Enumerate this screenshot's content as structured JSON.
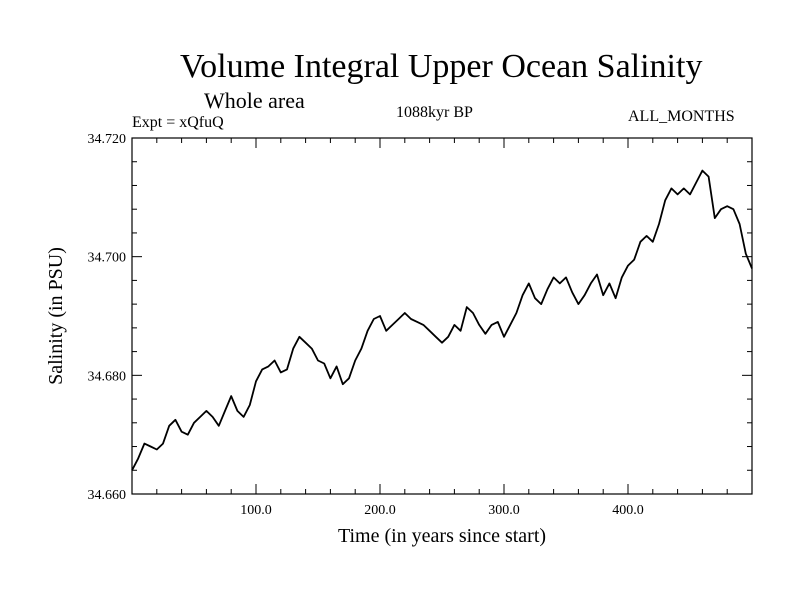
{
  "header": {
    "title": "Volume Integral Upper Ocean Salinity",
    "subtitle": "Whole area",
    "experiment": "Expt = xQfuQ",
    "period": "1088kyr BP",
    "months": "ALL_MONTHS"
  },
  "chart_data": {
    "type": "line",
    "title": "Volume Integral Upper Ocean Salinity",
    "xlabel": "Time (in years since start)",
    "ylabel": "Salinity (in PSU)",
    "xlim": [
      0,
      500
    ],
    "ylim": [
      34.66,
      34.72
    ],
    "xticks": [
      100,
      200,
      300,
      400
    ],
    "xtick_labels": [
      "100.0",
      "200.0",
      "300.0",
      "400.0"
    ],
    "yticks": [
      34.66,
      34.68,
      34.7,
      34.72
    ],
    "ytick_labels": [
      "34.660",
      "34.680",
      "34.700",
      "34.720"
    ],
    "grid": false,
    "series": [
      {
        "name": "Salinity",
        "x": [
          0,
          5,
          10,
          15,
          20,
          25,
          30,
          35,
          40,
          45,
          50,
          55,
          60,
          65,
          70,
          75,
          80,
          85,
          90,
          95,
          100,
          105,
          110,
          115,
          120,
          125,
          130,
          135,
          140,
          145,
          150,
          155,
          160,
          165,
          170,
          175,
          180,
          185,
          190,
          195,
          200,
          205,
          210,
          215,
          220,
          225,
          230,
          235,
          240,
          245,
          250,
          255,
          260,
          265,
          270,
          275,
          280,
          285,
          290,
          295,
          300,
          305,
          310,
          315,
          320,
          325,
          330,
          335,
          340,
          345,
          350,
          355,
          360,
          365,
          370,
          375,
          380,
          385,
          390,
          395,
          400,
          405,
          410,
          415,
          420,
          425,
          430,
          435,
          440,
          445,
          450,
          455,
          460,
          465,
          470,
          475,
          480,
          485,
          490,
          495,
          500
        ],
        "values": [
          34.664,
          34.666,
          34.6685,
          34.668,
          34.6675,
          34.6685,
          34.6715,
          34.6725,
          34.6705,
          34.67,
          34.672,
          34.673,
          34.674,
          34.673,
          34.6715,
          34.674,
          34.6765,
          34.674,
          34.673,
          34.675,
          34.679,
          34.681,
          34.6815,
          34.6825,
          34.6805,
          34.681,
          34.6845,
          34.6865,
          34.6855,
          34.6845,
          34.6825,
          34.682,
          34.6795,
          34.6815,
          34.6785,
          34.6795,
          34.6825,
          34.6845,
          34.6875,
          34.6895,
          34.69,
          34.6875,
          34.6885,
          34.6895,
          34.6905,
          34.6895,
          34.689,
          34.6885,
          34.6875,
          34.6865,
          34.6855,
          34.6865,
          34.6885,
          34.6875,
          34.6915,
          34.6905,
          34.6885,
          34.687,
          34.6885,
          34.689,
          34.6865,
          34.6885,
          34.6905,
          34.6935,
          34.6955,
          34.693,
          34.692,
          34.6945,
          34.6965,
          34.6955,
          34.6965,
          34.694,
          34.692,
          34.6935,
          34.6955,
          34.697,
          34.6935,
          34.6955,
          34.693,
          34.6965,
          34.6985,
          34.6995,
          34.7025,
          34.7035,
          34.7025,
          34.7055,
          34.7095,
          34.7115,
          34.7105,
          34.7115,
          34.7105,
          34.7125,
          34.7145,
          34.7135,
          34.7065,
          34.708,
          34.7085,
          34.708,
          34.7055,
          34.7005,
          34.698
        ]
      }
    ]
  }
}
